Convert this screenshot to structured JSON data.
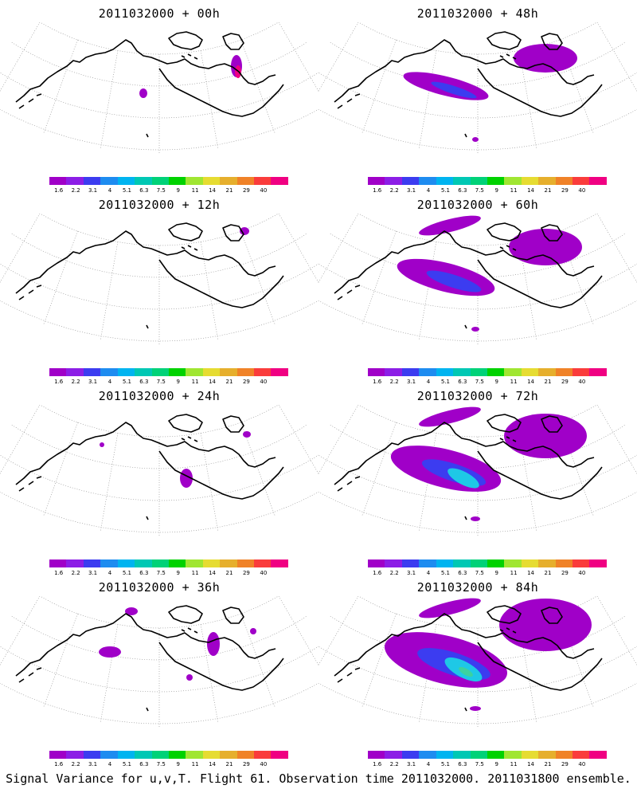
{
  "caption": "Signal Variance for u,v,T. Flight 61. Observation time 2011032000. 2011031800 ensemble.",
  "colorbar": {
    "labels": [
      "1.6",
      "2.2",
      "3.1",
      "4",
      "5.1",
      "6.3",
      "7.5",
      "9",
      "11",
      "14",
      "21",
      "29",
      "40"
    ],
    "colors": [
      "#a000c8",
      "#8c1ee6",
      "#3c3cf0",
      "#1e8cf0",
      "#00b4f0",
      "#00c8b4",
      "#00d278",
      "#00d200",
      "#a0e632",
      "#e6dc32",
      "#e6af2d",
      "#f08228",
      "#fa3c3c",
      "#f00082"
    ]
  },
  "panels": [
    {
      "title": "2011032000 + 00h",
      "level": 0
    },
    {
      "title": "2011032000 + 48h",
      "level": 4
    },
    {
      "title": "2011032000 + 12h",
      "level": 1
    },
    {
      "title": "2011032000 + 60h",
      "level": 5
    },
    {
      "title": "2011032000 + 24h",
      "level": 2
    },
    {
      "title": "2011032000 + 72h",
      "level": 6
    },
    {
      "title": "2011032000 + 36h",
      "level": 3
    },
    {
      "title": "2011032000 + 84h",
      "level": 7
    }
  ]
}
